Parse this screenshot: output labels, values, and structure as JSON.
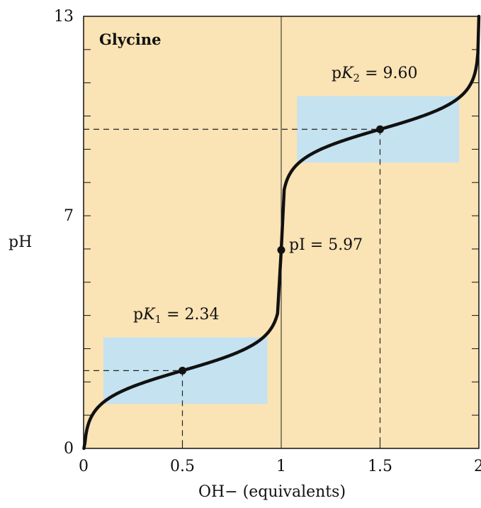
{
  "chart_data": {
    "type": "line",
    "title": "Glycine",
    "xlabel": "OH− (equivalents)",
    "ylabel": "pH",
    "xlim": [
      0,
      2
    ],
    "ylim": [
      0,
      13
    ],
    "x_ticks": [
      "0",
      "0.5",
      "1",
      "1.5",
      "2"
    ],
    "y_ticks": [
      "0",
      "7",
      "13"
    ],
    "minor_y_step": 1,
    "pKa1": 2.34,
    "pKa2": 9.6,
    "pI": 5.97,
    "background_color": "#fae3b4",
    "buffer_color": "#c5e2f0",
    "curve_color": "#111111",
    "buffer_regions": [
      {
        "x": [
          0.1,
          0.93
        ],
        "y": [
          1.34,
          3.34
        ]
      },
      {
        "x": [
          1.08,
          1.9
        ],
        "y": [
          8.6,
          10.6
        ]
      }
    ],
    "points": [
      {
        "x": 0.5,
        "y": 2.34
      },
      {
        "x": 1.0,
        "y": 5.97
      },
      {
        "x": 1.5,
        "y": 9.6
      }
    ],
    "annotations": {
      "pk1_prefix": "p",
      "pk1_k": "K",
      "pk1_sub": "1",
      "pk1_value": " = 2.34",
      "pk2_prefix": "p",
      "pk2_k": "K",
      "pk2_sub": "2",
      "pk2_value": " = 9.60",
      "pi_label": "pI = 5.97"
    }
  }
}
